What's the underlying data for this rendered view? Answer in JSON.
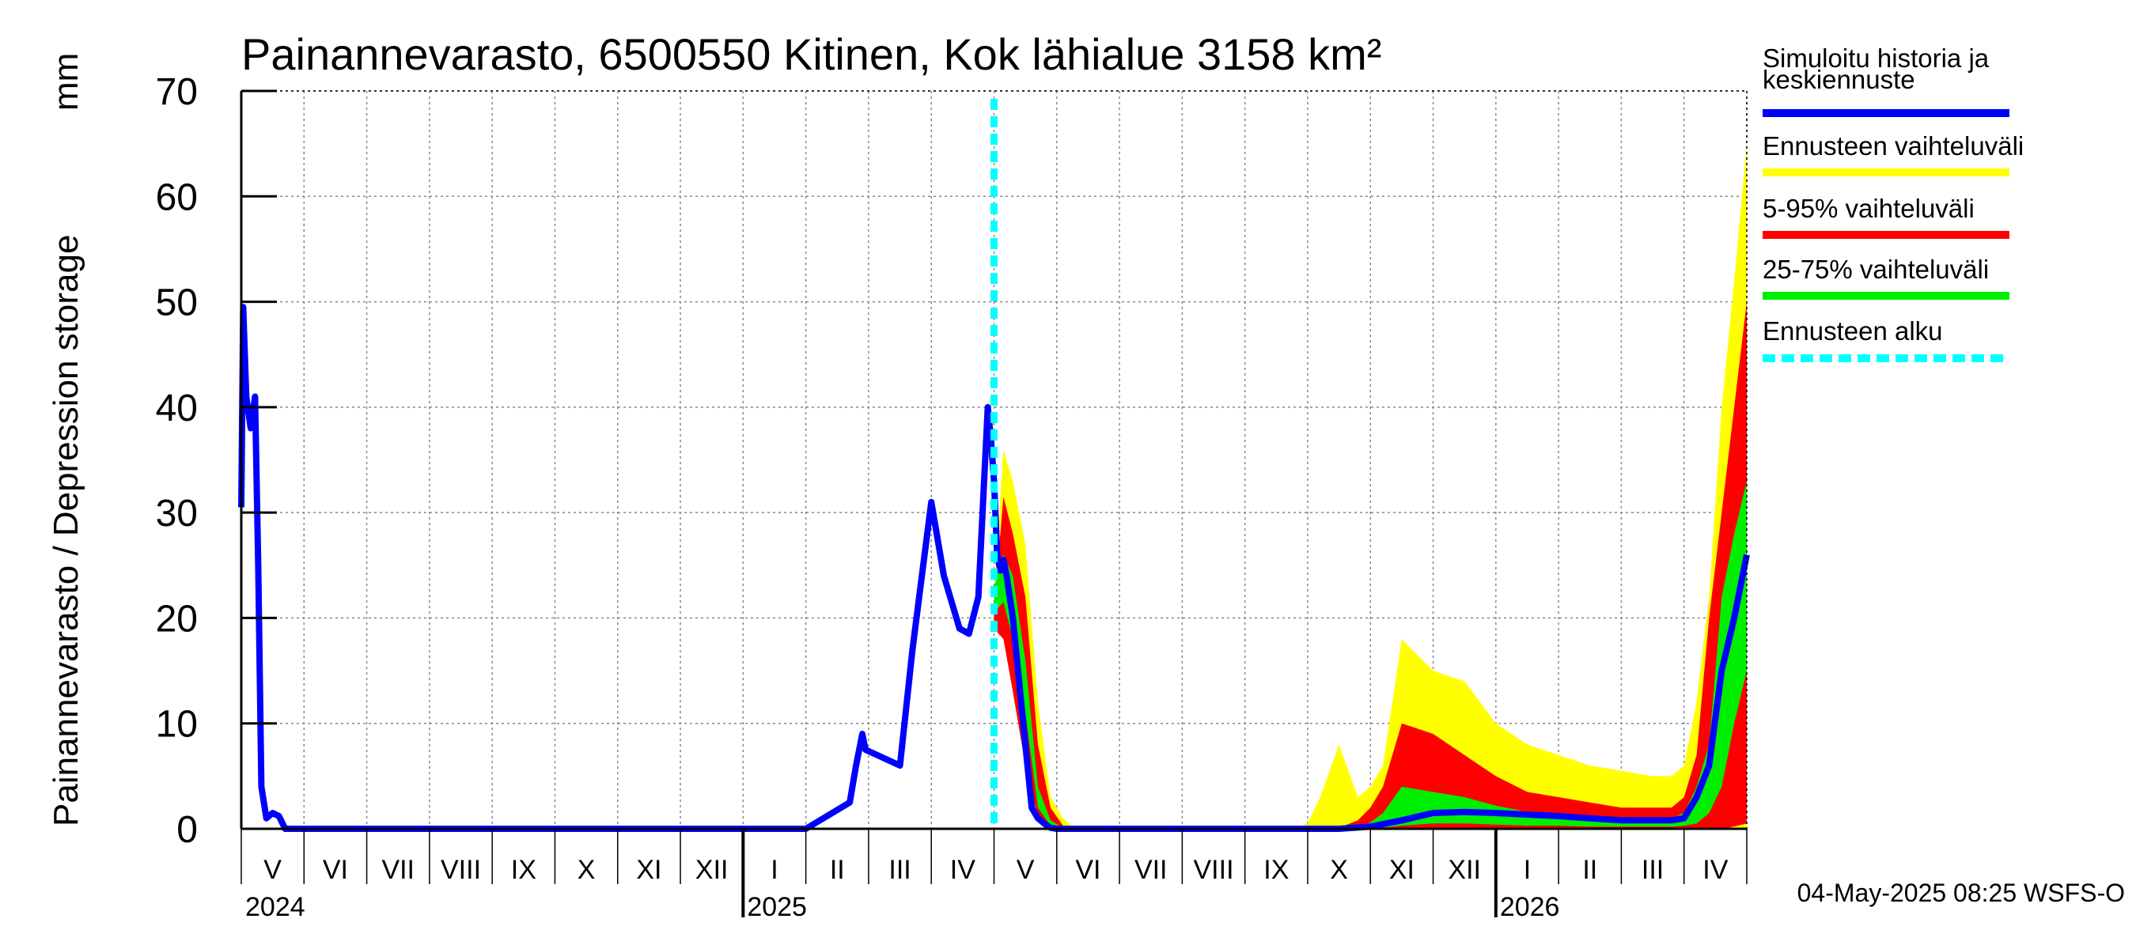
{
  "chart_data": {
    "type": "area",
    "title": "Painannevarasto, 6500550 Kitinen, Kok lähialue 3158 km²",
    "ylabel": "Painannevarasto / Depression storage",
    "yunit": "mm",
    "ylim": [
      0,
      70
    ],
    "yticks": [
      0,
      10,
      20,
      30,
      40,
      50,
      60,
      70
    ],
    "grid": true,
    "months": [
      "V",
      "VI",
      "VII",
      "VIII",
      "IX",
      "X",
      "XI",
      "XII",
      "I",
      "II",
      "III",
      "IV",
      "V",
      "VI",
      "VII",
      "VIII",
      "IX",
      "X",
      "XI",
      "XII",
      "I",
      "II",
      "III",
      "IV"
    ],
    "years": [
      "2024",
      "2025",
      "2026"
    ],
    "forecast_start_month_index": 12,
    "history": {
      "name": "Simuloitu historia ja keskiennuste",
      "x_month": [
        0.0,
        0.03,
        0.08,
        0.15,
        0.22,
        0.27,
        0.32,
        0.4,
        0.5,
        0.6,
        0.7,
        0.8,
        0.9,
        1.0,
        9.0,
        9.7,
        9.8,
        9.9,
        9.95,
        10.5,
        10.7,
        11.0,
        11.2,
        11.45,
        11.6,
        11.75,
        11.9,
        11.95,
        12.0,
        12.05,
        12.1,
        12.15,
        12.2,
        12.3,
        12.4,
        12.5,
        12.6,
        12.7,
        12.8,
        12.9,
        13.0
      ],
      "y": [
        30.5,
        49.5,
        41.0,
        38.0,
        41.0,
        25.0,
        4.0,
        1.0,
        1.5,
        1.2,
        0.0,
        0.0,
        0.0,
        0.0,
        0.0,
        2.5,
        6.0,
        9.0,
        7.5,
        6.0,
        17.0,
        31.0,
        24.0,
        19.0,
        18.5,
        22.0,
        40.0,
        37.0,
        33.0,
        26.0,
        24.5,
        25.5,
        24.0,
        20.0,
        14.0,
        8.0,
        2.0,
        1.0,
        0.5,
        0.1,
        0.0
      ]
    },
    "median_forecast": {
      "x_month": [
        13.0,
        17.5,
        18.0,
        18.5,
        19.0,
        19.5,
        20.0,
        21.0,
        22.0,
        22.5,
        22.8,
        23.0,
        23.2,
        23.4,
        23.6,
        23.8,
        24.0
      ],
      "y": [
        0.0,
        0.0,
        0.2,
        0.8,
        1.5,
        1.6,
        1.5,
        1.2,
        0.8,
        0.8,
        0.8,
        1.0,
        3.0,
        6.0,
        15.0,
        20.0,
        26.0
      ]
    },
    "bands": [
      {
        "name": "Ennusteen vaihteluväli",
        "color": "#ffff00",
        "x_month": [
          12.0,
          12.15,
          12.3,
          12.5,
          12.7,
          12.9,
          13.1,
          13.3,
          16.8,
          17.0,
          17.2,
          17.5,
          17.8,
          18.0,
          18.2,
          18.5,
          19.0,
          19.5,
          20.0,
          20.5,
          21.0,
          21.5,
          22.0,
          22.5,
          22.8,
          23.0,
          23.2,
          23.4,
          23.6,
          23.8,
          24.0
        ],
        "lower": [
          19.0,
          18.0,
          15.0,
          9.0,
          3.0,
          0.5,
          0.0,
          0.0,
          0.0,
          0.0,
          0.0,
          0.0,
          0.0,
          0.0,
          0.0,
          0.0,
          0.0,
          0.0,
          0.0,
          0.0,
          0.0,
          0.0,
          0.0,
          0.0,
          0.0,
          0.0,
          0.0,
          0.0,
          0.0,
          0.0,
          0.0
        ],
        "upper": [
          22.0,
          36.0,
          33.0,
          27.0,
          12.0,
          3.0,
          1.0,
          0.0,
          0.0,
          0.5,
          3.0,
          8.0,
          3.0,
          4.0,
          6.0,
          18.0,
          15.0,
          14.0,
          10.0,
          8.0,
          7.0,
          6.0,
          5.5,
          5.0,
          5.0,
          6.0,
          12.0,
          22.0,
          40.0,
          52.0,
          65.0
        ]
      },
      {
        "name": "5-95% vaihteluväli",
        "color": "#ff0000",
        "x_month": [
          12.0,
          12.15,
          12.3,
          12.5,
          12.7,
          12.9,
          13.1,
          13.3,
          17.4,
          17.5,
          17.8,
          18.0,
          18.2,
          18.5,
          19.0,
          19.5,
          20.0,
          20.5,
          21.0,
          21.5,
          22.0,
          22.5,
          22.8,
          23.0,
          23.2,
          23.4,
          23.6,
          23.8,
          24.0
        ],
        "lower": [
          19.0,
          18.0,
          13.0,
          6.0,
          1.0,
          0.0,
          0.0,
          0.0,
          0.0,
          0.0,
          0.0,
          0.0,
          0.0,
          0.0,
          0.0,
          0.0,
          0.0,
          0.0,
          0.0,
          0.0,
          0.0,
          0.0,
          0.0,
          0.0,
          0.0,
          0.0,
          0.0,
          0.2,
          0.5
        ],
        "upper": [
          21.0,
          31.5,
          28.0,
          22.0,
          8.0,
          2.0,
          0.3,
          0.0,
          0.0,
          0.1,
          0.8,
          2.0,
          4.0,
          10.0,
          9.0,
          7.0,
          5.0,
          3.5,
          3.0,
          2.5,
          2.0,
          2.0,
          2.0,
          3.0,
          7.0,
          20.0,
          30.0,
          40.0,
          50.0
        ]
      },
      {
        "name": "25-75% vaihteluväli",
        "color": "#00ee00",
        "x_month": [
          12.0,
          12.15,
          12.3,
          12.5,
          12.7,
          12.9,
          13.1,
          13.3,
          17.6,
          17.8,
          18.0,
          18.2,
          18.5,
          19.0,
          19.5,
          20.0,
          20.5,
          21.0,
          21.5,
          22.0,
          22.5,
          22.8,
          23.0,
          23.2,
          23.4,
          23.6,
          23.8,
          24.0
        ],
        "lower": [
          20.5,
          21.5,
          18.0,
          11.0,
          2.0,
          0.3,
          0.0,
          0.0,
          0.0,
          0.0,
          0.0,
          0.1,
          0.3,
          0.5,
          0.5,
          0.4,
          0.3,
          0.3,
          0.2,
          0.2,
          0.2,
          0.2,
          0.3,
          0.5,
          1.5,
          4.0,
          10.0,
          15.0
        ],
        "upper": [
          23.0,
          26.0,
          24.0,
          16.0,
          4.0,
          0.8,
          0.1,
          0.0,
          0.0,
          0.2,
          0.6,
          1.5,
          4.0,
          3.5,
          3.0,
          2.2,
          1.6,
          1.3,
          1.0,
          1.0,
          1.0,
          1.0,
          1.5,
          4.0,
          8.0,
          22.0,
          28.0,
          33.0
        ]
      }
    ],
    "legend": {
      "placement": "right",
      "entries": [
        {
          "label_line1": "Simuloitu historia ja",
          "label_line2": "keskiennuste",
          "color": "#0000ff",
          "style": "solid"
        },
        {
          "label_line1": "Ennusteen vaihteluväli",
          "label_line2": "",
          "color": "#ffff00",
          "style": "solid"
        },
        {
          "label_line1": "5-95% vaihteluväli",
          "label_line2": "",
          "color": "#ff0000",
          "style": "solid"
        },
        {
          "label_line1": "25-75% vaihteluväli",
          "label_line2": "",
          "color": "#00ee00",
          "style": "solid"
        },
        {
          "label_line1": "Ennusteen alku",
          "label_line2": "",
          "color": "#00ffff",
          "style": "dashed"
        }
      ]
    },
    "footer": "04-May-2025 08:25 WSFS-O"
  }
}
